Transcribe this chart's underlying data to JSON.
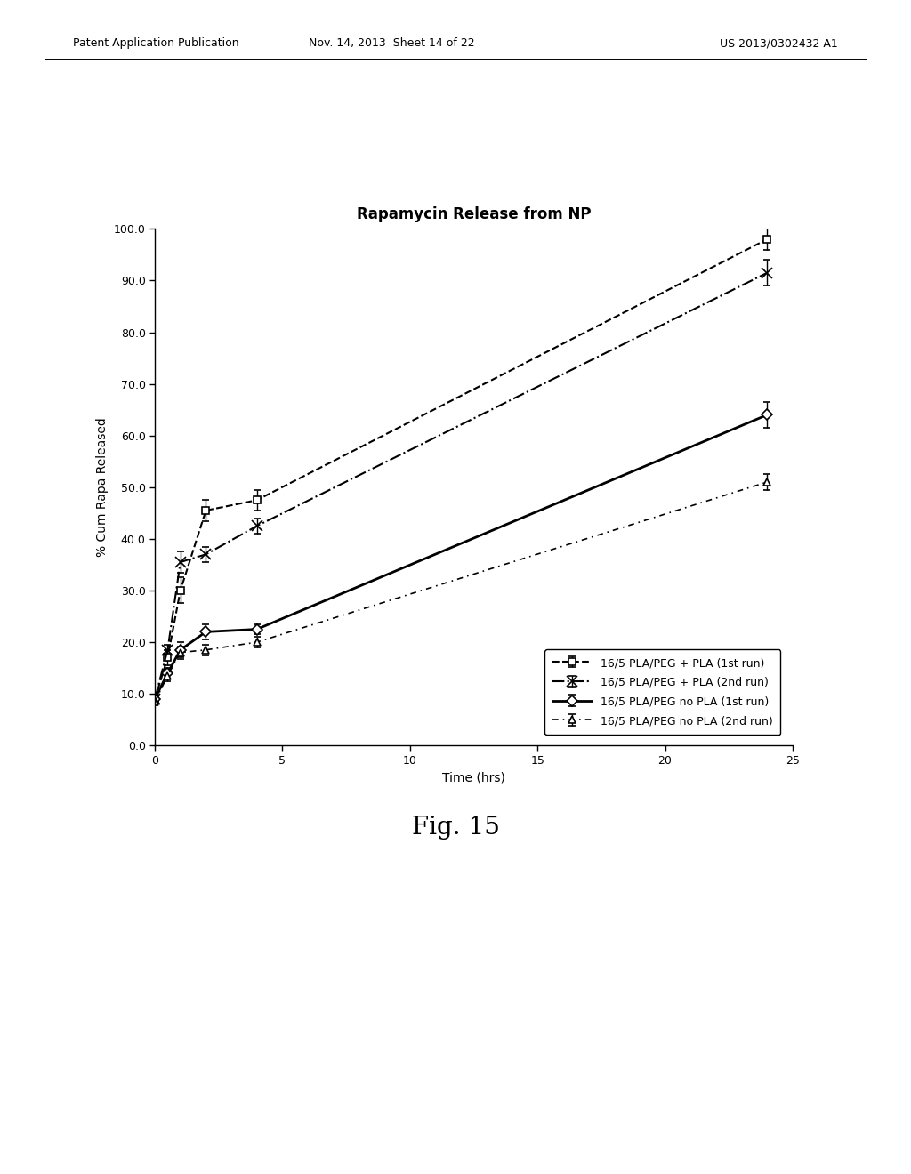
{
  "title": "Rapamycin Release from NP",
  "xlabel": "Time (hrs)",
  "ylabel": "% Cum Rapa Released",
  "fig_caption": "Fig. 15",
  "header_left": "Patent Application Publication",
  "header_center": "Nov. 14, 2013  Sheet 14 of 22",
  "header_right": "US 2013/0302432 A1",
  "xlim": [
    0,
    25
  ],
  "ylim": [
    0,
    100
  ],
  "xticks": [
    0,
    5,
    10,
    15,
    20,
    25
  ],
  "yticks": [
    0.0,
    10.0,
    20.0,
    30.0,
    40.0,
    50.0,
    60.0,
    70.0,
    80.0,
    90.0,
    100.0
  ],
  "series": [
    {
      "label": "16/5 PLA/PEG + PLA (1st run)",
      "x": [
        0,
        0.5,
        1,
        2,
        4,
        24
      ],
      "y": [
        9.0,
        17.0,
        30.0,
        45.5,
        47.5,
        98.0
      ],
      "yerr": [
        0.5,
        1.5,
        2.5,
        2.0,
        2.0,
        2.0
      ],
      "linestyle": "--",
      "marker": "s",
      "markersize": 6,
      "linewidth": 1.5,
      "color": "#000000",
      "markerfacecolor": "white",
      "markeredgecolor": "#000000"
    },
    {
      "label": "16/5 PLA/PEG + PLA (2nd run)",
      "x": [
        0,
        0.5,
        1,
        2,
        4,
        24
      ],
      "y": [
        9.0,
        18.5,
        35.5,
        37.0,
        42.5,
        91.5
      ],
      "yerr": [
        0.3,
        1.0,
        2.0,
        1.5,
        1.5,
        2.5
      ],
      "linestyle": "-.",
      "marker": "x",
      "markersize": 8,
      "linewidth": 1.5,
      "color": "#000000",
      "markerfacecolor": "#000000",
      "markeredgecolor": "#000000"
    },
    {
      "label": "16/5 PLA/PEG no PLA (1st run)",
      "x": [
        0,
        0.5,
        1,
        2,
        4,
        24
      ],
      "y": [
        9.0,
        14.0,
        18.5,
        22.0,
        22.5,
        64.0
      ],
      "yerr": [
        0.3,
        1.0,
        1.5,
        1.5,
        1.0,
        2.5
      ],
      "linestyle": "-",
      "marker": "D",
      "markersize": 6,
      "linewidth": 2.0,
      "color": "#000000",
      "markerfacecolor": "white",
      "markeredgecolor": "#000000"
    },
    {
      "label": "16/5 PLA/PEG no PLA (2nd run)",
      "x": [
        0,
        0.5,
        1,
        2,
        4,
        24
      ],
      "y": [
        8.5,
        13.5,
        18.0,
        18.5,
        20.0,
        51.0
      ],
      "yerr": [
        0.3,
        1.0,
        1.2,
        1.0,
        1.0,
        1.5
      ],
      "linestyle": "--",
      "marker": "^",
      "markersize": 6,
      "linewidth": 1.2,
      "color": "#000000",
      "markerfacecolor": "white",
      "markeredgecolor": "#000000",
      "dashes": [
        4,
        3,
        1,
        3
      ]
    }
  ],
  "background_color": "#ffffff",
  "fontsize_title": 12,
  "fontsize_label": 10,
  "fontsize_tick": 9,
  "fontsize_legend": 9,
  "fontsize_caption": 20,
  "fontsize_header": 9
}
